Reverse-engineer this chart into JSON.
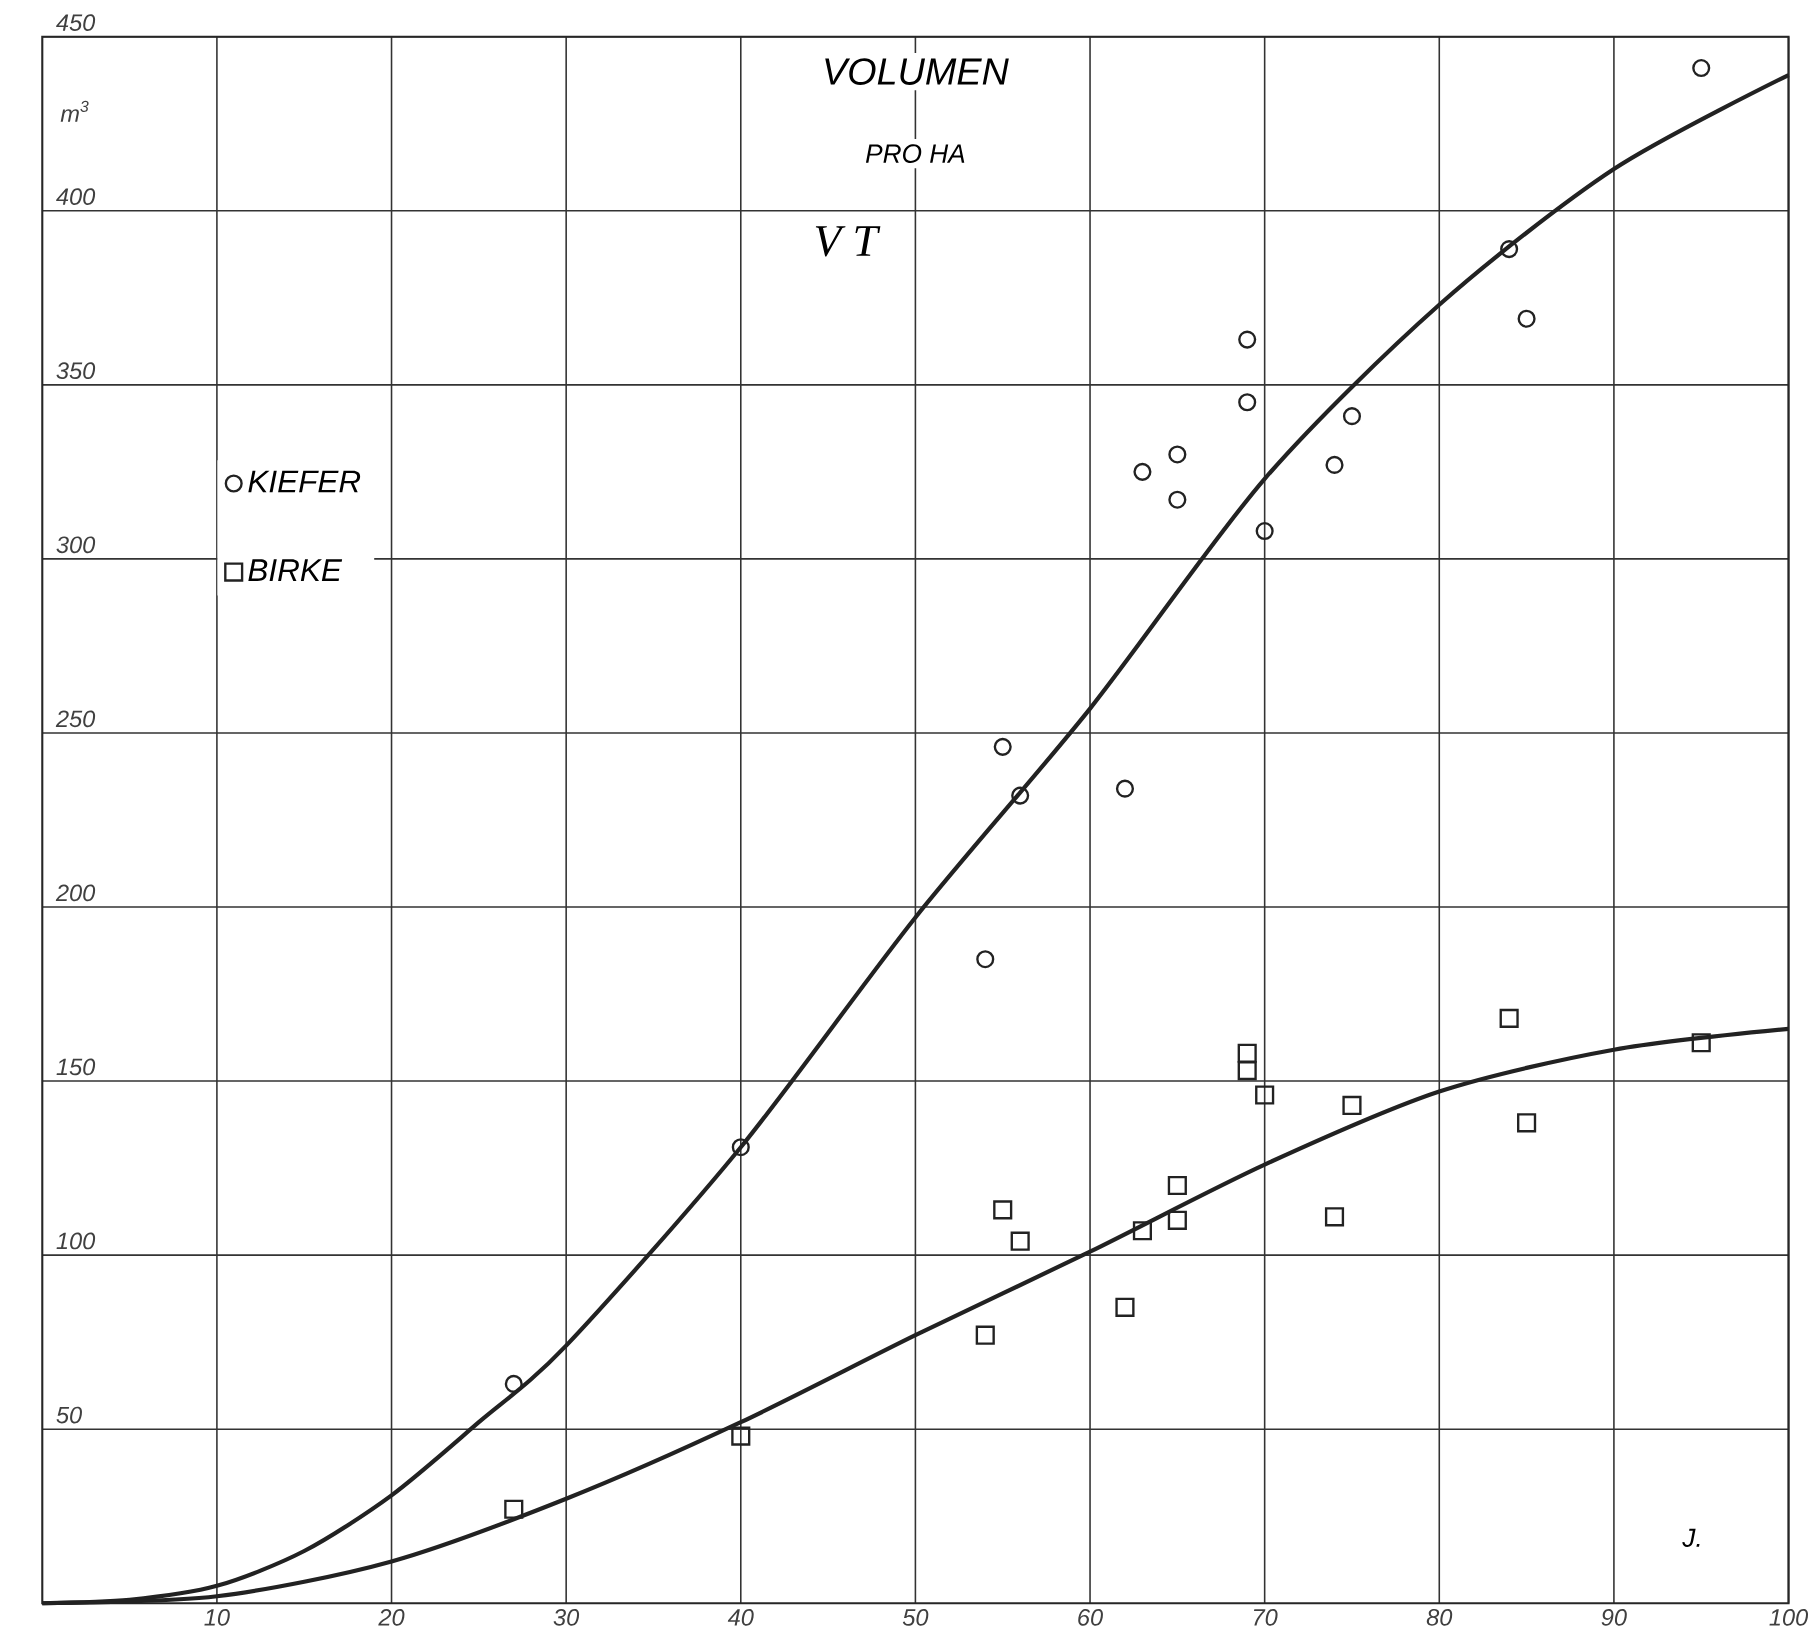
{
  "chart_data": {
    "type": "scatter",
    "title": "VOLUMEN",
    "subtitle": "PRO HA",
    "annotations": [
      "V T"
    ],
    "xlabel": "J.",
    "ylabel": "m$^{3}$",
    "xlim": [
      0,
      100
    ],
    "ylim": [
      0,
      450
    ],
    "xticks": [
      10,
      20,
      30,
      40,
      50,
      60,
      70,
      80,
      90,
      100
    ],
    "yticks": [
      50,
      100,
      150,
      200,
      250,
      300,
      350,
      400,
      450
    ],
    "grid": true,
    "legend": "left",
    "series": [
      {
        "type": "scatter",
        "name": "KIEFER",
        "color": "#222222",
        "marker": "circle",
        "x": [
          27,
          40,
          54,
          55,
          56,
          62,
          63,
          65,
          65,
          69,
          69,
          70,
          74,
          75,
          84,
          85,
          95
        ],
        "values": [
          63,
          131,
          185,
          246,
          232,
          234,
          325,
          330,
          317,
          363,
          345,
          308,
          327,
          341,
          389,
          369,
          441
        ]
      },
      {
        "type": "scatter",
        "name": "BIRKE",
        "color": "#222222",
        "marker": "square",
        "x": [
          27,
          40,
          54,
          55,
          56,
          62,
          63,
          65,
          65,
          69,
          69,
          70,
          74,
          75,
          84,
          85,
          95
        ],
        "values": [
          27,
          48,
          77,
          113,
          104,
          85,
          107,
          120,
          110,
          158,
          153,
          146,
          111,
          143,
          168,
          138,
          161
        ]
      },
      {
        "type": "line",
        "color": "#222222",
        "marker": "none",
        "line_style": "solid",
        "x": [
          0,
          5,
          10,
          15,
          20,
          25,
          30,
          40,
          50,
          60,
          70,
          80,
          90,
          100
        ],
        "values": [
          0,
          1,
          5,
          15,
          31,
          52,
          74,
          131,
          197,
          257,
          323,
          373,
          412,
          439
        ]
      },
      {
        "type": "line",
        "color": "#222222",
        "marker": "none",
        "line_style": "solid",
        "x": [
          0,
          10,
          20,
          30,
          40,
          50,
          60,
          70,
          80,
          90,
          100
        ],
        "values": [
          0,
          2,
          12,
          30,
          52,
          77,
          101,
          126,
          147,
          159,
          165
        ]
      }
    ]
  }
}
